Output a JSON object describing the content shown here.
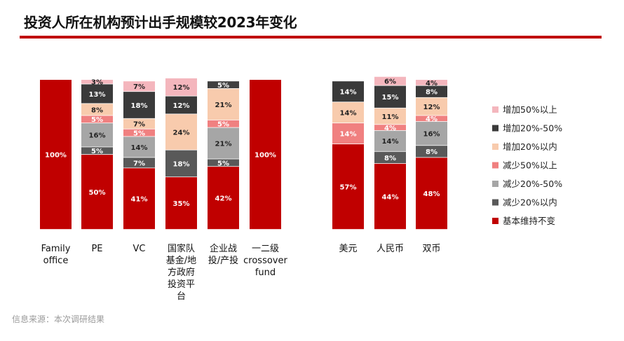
{
  "title": "投资人所在机构预计出手规模较2023年变化",
  "source": "信息来源：本次调研结果",
  "chart_data": {
    "type": "bar",
    "stacked": true,
    "percent_stacked": true,
    "ylim": [
      0,
      100
    ],
    "legend_position": "right",
    "groups": [
      {
        "name": "institution",
        "categories": [
          "Family office",
          "PE",
          "VC",
          "国家队基金/地方政府投资平台",
          "企业战投/产投",
          "一二级crossover fund"
        ],
        "category_lines": [
          [
            "Family",
            "office"
          ],
          [
            "PE"
          ],
          [
            "VC"
          ],
          [
            "国家队",
            "基金/地",
            "方政府",
            "投资平",
            "台"
          ],
          [
            "企业战",
            "投/产投"
          ],
          [
            "一二级",
            "crossover",
            "fund"
          ]
        ]
      },
      {
        "name": "currency",
        "categories": [
          "美元",
          "人民币",
          "双币"
        ],
        "category_lines": [
          [
            "美元"
          ],
          [
            "人民币"
          ],
          [
            "双币"
          ]
        ]
      }
    ],
    "series": [
      {
        "name": "基本维持不变",
        "color": "#c00000",
        "label_color": "#ffffff",
        "values": [
          100,
          50,
          41,
          35,
          42,
          100,
          57,
          44,
          48
        ]
      },
      {
        "name": "减少20%以内",
        "color": "#595959",
        "label_color": "#ffffff",
        "values": [
          0,
          5,
          7,
          18,
          5,
          0,
          0,
          8,
          8
        ]
      },
      {
        "name": "减少20%-50%",
        "color": "#a6a6a6",
        "label_color": "#222222",
        "values": [
          0,
          16,
          14,
          0,
          21,
          0,
          0,
          14,
          16
        ]
      },
      {
        "name": "减少50%以上",
        "color": "#f08080",
        "label_color": "#ffffff",
        "values": [
          0,
          5,
          5,
          0,
          5,
          0,
          14,
          4,
          4
        ]
      },
      {
        "name": "增加20%以内",
        "color": "#f8cbad",
        "label_color": "#222222",
        "values": [
          0,
          8,
          7,
          24,
          21,
          0,
          14,
          11,
          12
        ]
      },
      {
        "name": "增加20%-50%",
        "color": "#3a3a3a",
        "label_color": "#ffffff",
        "values": [
          0,
          13,
          18,
          12,
          0,
          0,
          14,
          15,
          8
        ]
      },
      {
        "name": "增加50%以上",
        "color": "#f4b6bd",
        "label_color": "#222222",
        "values": [
          0,
          3,
          7,
          12,
          5,
          0,
          0,
          6,
          4
        ]
      }
    ],
    "series_top_override_colors": {
      "企业战投/产投": {
        "增加50%以上": "#404040"
      }
    },
    "legend_order": [
      "增加50%以上",
      "增加20%-50%",
      "增加20%以内",
      "减少50%以上",
      "减少20%-50%",
      "减少20%以内",
      "基本维持不变"
    ]
  }
}
